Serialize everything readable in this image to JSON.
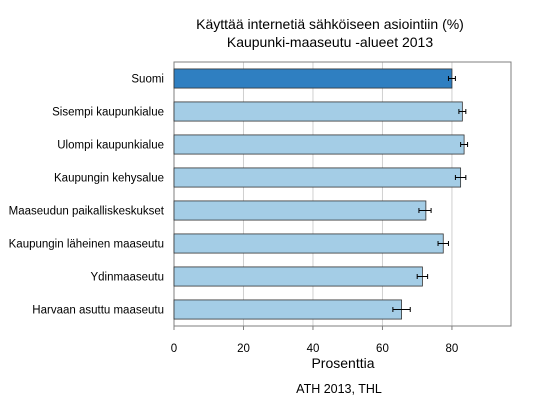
{
  "chart_data": {
    "type": "bar",
    "orientation": "horizontal",
    "title": "Käyttää internetiä sähköiseen asiointiin (%)",
    "subtitle": "Kaupunki-maaseutu -alueet 2013",
    "xlabel": "Prosenttia",
    "ylabel": "",
    "xlim": [
      0,
      97
    ],
    "xticks": [
      0,
      20,
      40,
      60,
      80
    ],
    "categories": [
      "Suomi",
      "Sisempi kaupunkialue",
      "Ulompi kaupunkialue",
      "Kaupungin kehysalue",
      "Maaseudun paikalliskeskukset",
      "Kaupungin läheinen maaseutu",
      "Ydinmaaseutu",
      "Harvaan asuttu maaseutu"
    ],
    "values": [
      80,
      83,
      83.5,
      82.5,
      72.5,
      77.5,
      71.5,
      65.5
    ],
    "error_low": [
      79,
      82,
      82.5,
      81,
      70.5,
      76,
      70,
      63
    ],
    "error_high": [
      81,
      84,
      84.5,
      84,
      74,
      79,
      73,
      68
    ],
    "highlight_color": "#2f7fc1",
    "bar_color": "#a4cde6",
    "grid": "vertical",
    "source": "ATH 2013, THL"
  }
}
